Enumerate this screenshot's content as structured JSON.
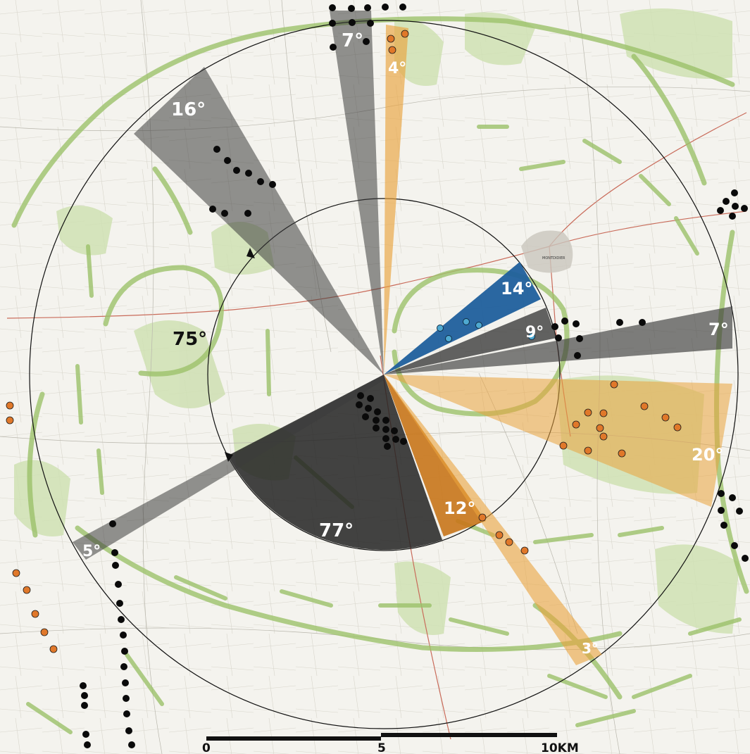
{
  "map": {
    "colors": {
      "background": "#f3f2ec",
      "grey_sector": "#3c3c3c",
      "orange_sector": "#e9a33d",
      "blue_sector": "#1f5f9c",
      "green_arc": "#9cc26a",
      "road": "#c96b5a",
      "orange_dot": "#e0782a",
      "blue_dot": "#4fa9d1"
    },
    "sector_labels": [
      {
        "text": "7°",
        "color": "grey"
      },
      {
        "text": "4°",
        "color": "orange"
      },
      {
        "text": "16°",
        "color": "grey"
      },
      {
        "text": "14°",
        "color": "blue"
      },
      {
        "text": "9°",
        "color": "grey"
      },
      {
        "text": "7°",
        "color": "grey"
      },
      {
        "text": "20°",
        "color": "orange"
      },
      {
        "text": "12°",
        "color": "orange"
      },
      {
        "text": "3°",
        "color": "orange"
      },
      {
        "text": "77°",
        "color": "grey"
      },
      {
        "text": "5°",
        "color": "grey"
      },
      {
        "text": "75°",
        "color": "none"
      }
    ],
    "town_label": "MONTDIDIER",
    "scale_bar": {
      "labels": [
        "0",
        "5",
        "10KM"
      ]
    }
  }
}
